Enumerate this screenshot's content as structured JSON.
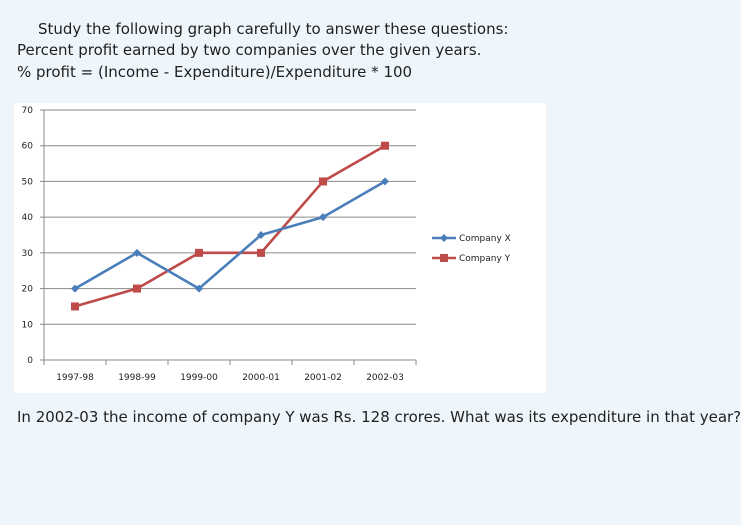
{
  "intro": {
    "line1": "Study the following graph carefully to answer these questions:",
    "line2": "Percent profit earned by two companies over the given years.",
    "line3": "% profit = (Income - Expenditure)/Expenditure * 100"
  },
  "question": "In 2002-03 the income of company Y was Rs. 128 crores. What was its expenditure in that year?",
  "colors": {
    "background": "#eef6fb",
    "plot_bg": "#ffffff",
    "company_x": "#4a7ebb",
    "company_y": "#be4b48",
    "grid": "#8a8a8a"
  },
  "chart_data": {
    "type": "line",
    "title": "",
    "xlabel": "",
    "ylabel": "",
    "categories": [
      "1997-98",
      "1998-99",
      "1999-00",
      "2000-01",
      "2001-02",
      "2002-03"
    ],
    "series": [
      {
        "name": "Company X",
        "values": [
          20,
          30,
          20,
          35,
          40,
          50
        ],
        "color": "#4a7ebb",
        "marker": "diamond"
      },
      {
        "name": "Company Y",
        "values": [
          15,
          20,
          30,
          30,
          50,
          60
        ],
        "color": "#be4b48",
        "marker": "square"
      }
    ],
    "ylim": [
      0,
      70
    ],
    "yticks": [
      0,
      10,
      20,
      30,
      40,
      50,
      60,
      70
    ],
    "grid": true,
    "legend": "right"
  }
}
